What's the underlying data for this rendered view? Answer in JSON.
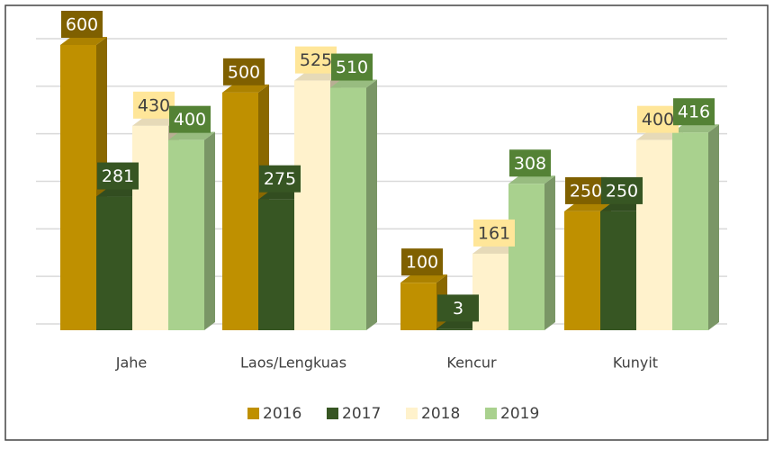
{
  "chart_data": {
    "type": "bar3d",
    "categories": [
      "Jahe",
      "Laos/Lengkuas",
      "Kencur",
      "Kunyit"
    ],
    "series": [
      {
        "name": "2016",
        "color": "#bf9000",
        "label_color": "#7f6000",
        "values": [
          600,
          500,
          100,
          250
        ]
      },
      {
        "name": "2017",
        "color": "#375623",
        "label_color": "#375623",
        "values": [
          281,
          275,
          3,
          250
        ]
      },
      {
        "name": "2018",
        "color": "#fff2cc",
        "label_color": "#ffe699",
        "values": [
          430,
          525,
          161,
          400
        ]
      },
      {
        "name": "2019",
        "color": "#a9d18e",
        "label_color": "#548235",
        "values": [
          400,
          510,
          308,
          416
        ]
      }
    ],
    "ylim": [
      0,
      600
    ],
    "yticks": [
      0,
      100,
      200,
      300,
      400,
      500,
      600
    ],
    "grid": true,
    "legend": "bottom"
  }
}
